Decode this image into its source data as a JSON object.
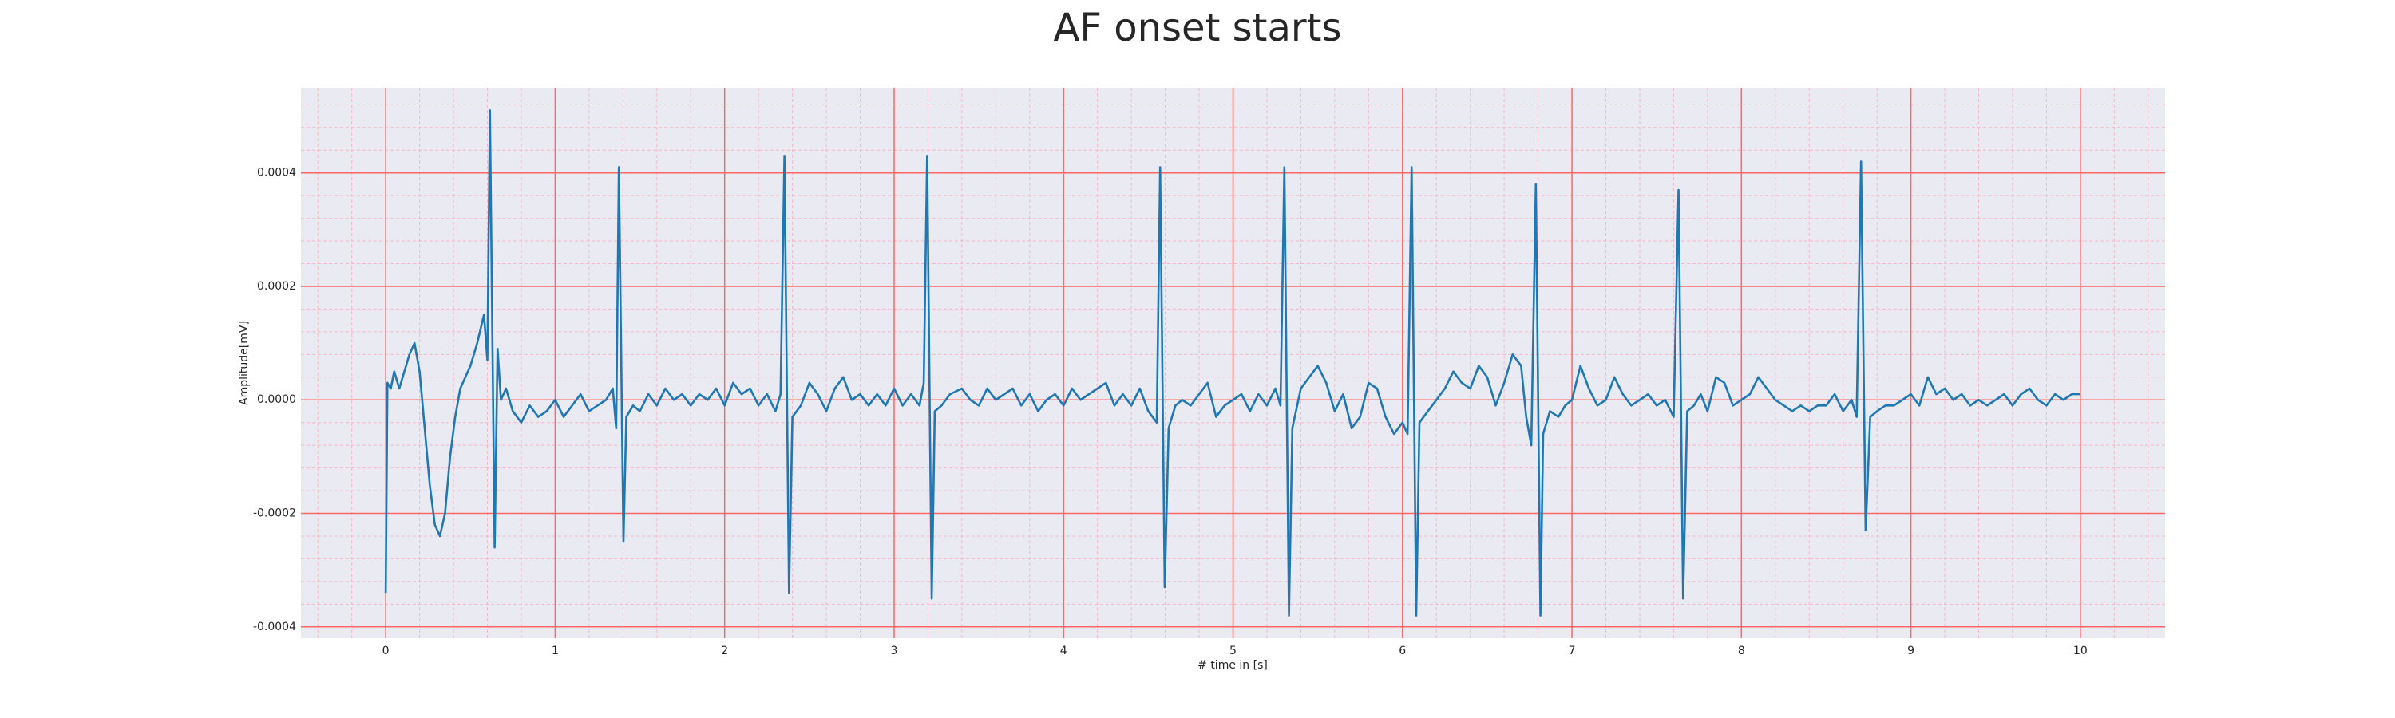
{
  "chart_data": {
    "type": "line",
    "title": "AF onset starts",
    "xlabel": "# time in [s]",
    "ylabel": "Amplitude[mV]",
    "color": "#1f77b4",
    "grid": true,
    "grid_color": "#ff6666",
    "minor_grid": true,
    "minor_grid_color": "#f5b8c4",
    "background": "#eaeaf2",
    "xlim": [
      -0.5,
      10.5
    ],
    "ylim": [
      -0.00042,
      0.00055
    ],
    "xticks": [
      0,
      1,
      2,
      3,
      4,
      5,
      6,
      7,
      8,
      9,
      10
    ],
    "yticks": [
      -0.0004,
      -0.0002,
      {
        "value": 0,
        "label": "0.0000"
      },
      0.0002,
      0.0004
    ],
    "xminorticks": [
      -0.4,
      -0.2,
      0.2,
      0.4,
      0.6,
      0.8,
      1.2,
      1.4,
      1.6,
      1.8,
      2.2,
      2.4,
      2.6,
      2.8,
      3.2,
      3.4,
      3.6,
      3.8,
      4.2,
      4.4,
      4.6,
      4.8,
      5.2,
      5.4,
      5.6,
      5.8,
      6.2,
      6.4,
      6.6,
      6.8,
      7.2,
      7.4,
      7.6,
      7.8,
      8.2,
      8.4,
      8.6,
      8.8,
      9.2,
      9.4,
      9.6,
      9.8,
      10.2,
      10.4
    ],
    "yminorticks": [
      -0.00036,
      -0.00032,
      -0.00028,
      -0.00024,
      -0.00016,
      -0.00012,
      -8e-05,
      -4e-05,
      4e-05,
      8e-05,
      0.00012,
      0.00016,
      0.00024,
      0.00028,
      0.00032,
      0.00036,
      0.00044,
      0.00048,
      0.00052
    ],
    "x": [
      0,
      0.01,
      0.03,
      0.05,
      0.08,
      0.11,
      0.14,
      0.17,
      0.2,
      0.23,
      0.26,
      0.29,
      0.32,
      0.35,
      0.38,
      0.41,
      0.44,
      0.47,
      0.5,
      0.54,
      0.58,
      0.6,
      0.615,
      0.643,
      0.66,
      0.68,
      0.71,
      0.75,
      0.8,
      0.85,
      0.9,
      0.95,
      1.0,
      1.05,
      1.1,
      1.15,
      1.2,
      1.25,
      1.3,
      1.34,
      1.36,
      1.376,
      1.403,
      1.42,
      1.46,
      1.5,
      1.55,
      1.6,
      1.65,
      1.7,
      1.75,
      1.8,
      1.85,
      1.9,
      1.95,
      2.0,
      2.05,
      2.1,
      2.15,
      2.2,
      2.25,
      2.3,
      2.33,
      2.353,
      2.38,
      2.4,
      2.45,
      2.5,
      2.55,
      2.6,
      2.65,
      2.7,
      2.75,
      2.8,
      2.85,
      2.9,
      2.95,
      3.0,
      3.05,
      3.1,
      3.15,
      3.175,
      3.195,
      3.222,
      3.24,
      3.28,
      3.33,
      3.4,
      3.45,
      3.5,
      3.55,
      3.6,
      3.65,
      3.7,
      3.75,
      3.8,
      3.85,
      3.9,
      3.95,
      4.0,
      4.05,
      4.1,
      4.15,
      4.2,
      4.25,
      4.3,
      4.35,
      4.4,
      4.45,
      4.5,
      4.55,
      4.57,
      4.597,
      4.62,
      4.66,
      4.7,
      4.75,
      4.8,
      4.85,
      4.9,
      4.95,
      5.0,
      5.05,
      5.1,
      5.15,
      5.2,
      5.25,
      5.28,
      5.303,
      5.33,
      5.35,
      5.4,
      5.45,
      5.5,
      5.55,
      5.6,
      5.65,
      5.7,
      5.75,
      5.8,
      5.85,
      5.9,
      5.95,
      6.0,
      6.03,
      6.054,
      6.081,
      6.1,
      6.15,
      6.2,
      6.25,
      6.3,
      6.35,
      6.4,
      6.45,
      6.5,
      6.55,
      6.6,
      6.65,
      6.7,
      6.73,
      6.76,
      6.787,
      6.814,
      6.83,
      6.87,
      6.92,
      6.96,
      7.0,
      7.05,
      7.1,
      7.15,
      7.2,
      7.25,
      7.3,
      7.35,
      7.4,
      7.45,
      7.5,
      7.55,
      7.6,
      7.629,
      7.656,
      7.68,
      7.72,
      7.76,
      7.8,
      7.85,
      7.9,
      7.95,
      8.0,
      8.05,
      8.1,
      8.15,
      8.2,
      8.25,
      8.3,
      8.35,
      8.4,
      8.45,
      8.5,
      8.55,
      8.6,
      8.65,
      8.68,
      8.706,
      8.733,
      8.76,
      8.8,
      8.85,
      8.9,
      8.95,
      9.0,
      9.05,
      9.1,
      9.15,
      9.2,
      9.25,
      9.3,
      9.35,
      9.4,
      9.45,
      9.5,
      9.55,
      9.6,
      9.65,
      9.7,
      9.75,
      9.8,
      9.85,
      9.9,
      9.95,
      10.0
    ],
    "values": [
      -0.00034,
      3e-05,
      2e-05,
      5e-05,
      2e-05,
      5e-05,
      8e-05,
      0.0001,
      5e-05,
      -5e-05,
      -0.00015,
      -0.00022,
      -0.00024,
      -0.0002,
      -0.0001,
      -3e-05,
      2e-05,
      4e-05,
      6e-05,
      0.0001,
      0.00015,
      7e-05,
      0.00051,
      -0.00026,
      9e-05,
      0,
      2e-05,
      -2e-05,
      -4e-05,
      -1e-05,
      -3e-05,
      -2e-05,
      0,
      -3e-05,
      -1e-05,
      1e-05,
      -2e-05,
      -1e-05,
      0,
      2e-05,
      -5e-05,
      0.00041,
      -0.00025,
      -3e-05,
      -1e-05,
      -2e-05,
      1e-05,
      -1e-05,
      2e-05,
      0,
      1e-05,
      -1e-05,
      1e-05,
      0,
      2e-05,
      -1e-05,
      3e-05,
      1e-05,
      2e-05,
      -1e-05,
      1e-05,
      -2e-05,
      1e-05,
      0.00043,
      -0.00034,
      -3e-05,
      -1e-05,
      3e-05,
      1e-05,
      -2e-05,
      2e-05,
      4e-05,
      0,
      1e-05,
      -1e-05,
      1e-05,
      -1e-05,
      2e-05,
      -1e-05,
      1e-05,
      -1e-05,
      3e-05,
      0.00043,
      -0.00035,
      -2e-05,
      -1e-05,
      1e-05,
      2e-05,
      0,
      -1e-05,
      2e-05,
      0,
      1e-05,
      2e-05,
      -1e-05,
      1e-05,
      -2e-05,
      0,
      1e-05,
      -1e-05,
      2e-05,
      0,
      1e-05,
      2e-05,
      3e-05,
      -1e-05,
      1e-05,
      -1e-05,
      2e-05,
      -2e-05,
      -4e-05,
      0.00041,
      -0.00033,
      -5e-05,
      -1e-05,
      0,
      -1e-05,
      1e-05,
      3e-05,
      -3e-05,
      -1e-05,
      0,
      1e-05,
      -2e-05,
      1e-05,
      -1e-05,
      2e-05,
      -1e-05,
      0.00041,
      -0.00038,
      -5e-05,
      2e-05,
      4e-05,
      6e-05,
      3e-05,
      -2e-05,
      1e-05,
      -5e-05,
      -3e-05,
      3e-05,
      2e-05,
      -3e-05,
      -6e-05,
      -4e-05,
      -6e-05,
      0.00041,
      -0.00038,
      -4e-05,
      -2e-05,
      0,
      2e-05,
      5e-05,
      3e-05,
      2e-05,
      6e-05,
      4e-05,
      -1e-05,
      3e-05,
      8e-05,
      6e-05,
      -3e-05,
      -8e-05,
      0.00038,
      -0.00038,
      -6e-05,
      -2e-05,
      -3e-05,
      -1e-05,
      0,
      6e-05,
      2e-05,
      -1e-05,
      0,
      4e-05,
      1e-05,
      -1e-05,
      0,
      1e-05,
      -1e-05,
      0,
      -3e-05,
      0.00037,
      -0.00035,
      -2e-05,
      -1e-05,
      1e-05,
      -2e-05,
      4e-05,
      3e-05,
      -1e-05,
      0,
      1e-05,
      4e-05,
      2e-05,
      0,
      -1e-05,
      -2e-05,
      -1e-05,
      -2e-05,
      -1e-05,
      -1e-05,
      1e-05,
      -2e-05,
      0,
      -3e-05,
      0.00042,
      -0.00023,
      -3e-05,
      -2e-05,
      -1e-05,
      -1e-05,
      0,
      1e-05,
      -1e-05,
      4e-05,
      1e-05,
      2e-05,
      0,
      1e-05,
      -1e-05,
      0,
      -1e-05,
      0,
      1e-05,
      -1e-05,
      1e-05,
      2e-05,
      0,
      -1e-05,
      1e-05,
      0,
      1e-05,
      1e-05
    ]
  }
}
